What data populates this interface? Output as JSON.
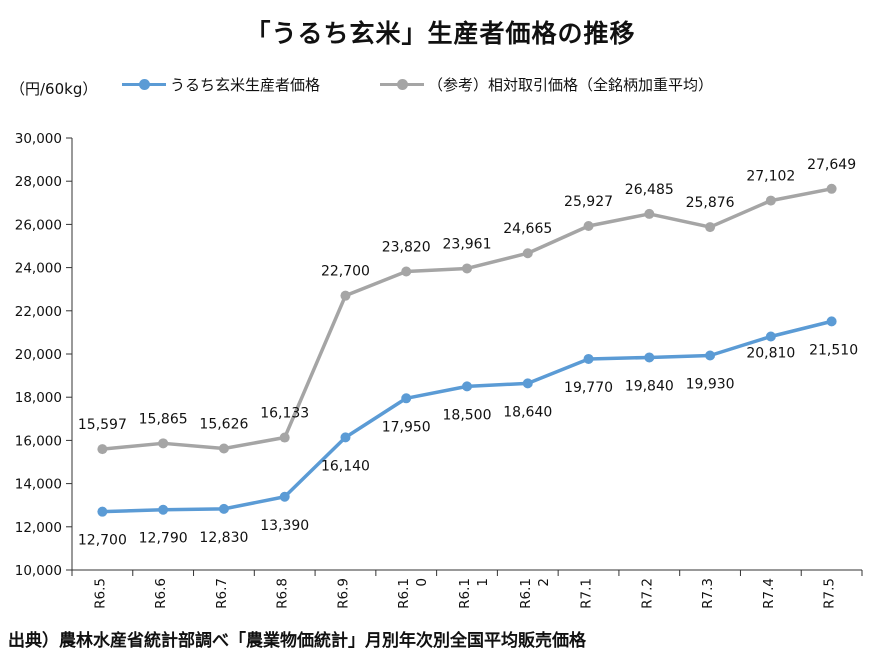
{
  "chart_data": {
    "type": "line",
    "title": "「うるち玄米」生産者価格の推移",
    "unit_label": "（円/60kg）",
    "categories": [
      "R6.5",
      "R6.6",
      "R6.7",
      "R6.8",
      "R6.9",
      "R6.10",
      "R6.11",
      "R6.12",
      "R7.1",
      "R7.2",
      "R7.3",
      "R7.4",
      "R7.5"
    ],
    "category_label_lines": [
      [
        "R6.5"
      ],
      [
        "R6.6"
      ],
      [
        "R6.7"
      ],
      [
        "R6.8"
      ],
      [
        "R6.9"
      ],
      [
        "R6.1",
        "0"
      ],
      [
        "R6.1",
        "1"
      ],
      [
        "R6.1",
        "2"
      ],
      [
        "R7.1"
      ],
      [
        "R7.2"
      ],
      [
        "R7.3"
      ],
      [
        "R7.4"
      ],
      [
        "R7.5"
      ]
    ],
    "ylim": [
      10000,
      30000
    ],
    "yticks": [
      10000,
      12000,
      14000,
      16000,
      18000,
      20000,
      22000,
      24000,
      26000,
      28000,
      30000
    ],
    "ytick_labels": [
      "10,000",
      "12,000",
      "14,000",
      "16,000",
      "18,000",
      "20,000",
      "22,000",
      "24,000",
      "26,000",
      "28,000",
      "30,000"
    ],
    "grid": false,
    "legend_position": "top",
    "series": [
      {
        "name": "うるち玄米生産者価格",
        "color": "#5b9bd5",
        "values": [
          12700,
          12790,
          12830,
          13390,
          16140,
          17950,
          18500,
          18640,
          19770,
          19840,
          19930,
          20810,
          21510
        ],
        "labels": [
          "12,700",
          "12,790",
          "12,830",
          "13,390",
          "16,140",
          "17,950",
          "18,500",
          "18,640",
          "19,770",
          "19,840",
          "19,930",
          "20,810",
          "21,510"
        ]
      },
      {
        "name": "（参考）相対取引価格（全銘柄加重平均）",
        "color": "#a5a5a5",
        "values": [
          15597,
          15865,
          15626,
          16133,
          22700,
          23820,
          23961,
          24665,
          25927,
          26485,
          25876,
          27102,
          27649
        ],
        "labels": [
          "15,597",
          "15,865",
          "15,626",
          "16,133",
          "22,700",
          "23,820",
          "23,961",
          "24,665",
          "25,927",
          "26,485",
          "25,876",
          "27,102",
          "27,649"
        ]
      }
    ]
  },
  "source_note": "出典）農林水産省統計部調べ「農業物価統計」月別年次別全国平均販売価格"
}
